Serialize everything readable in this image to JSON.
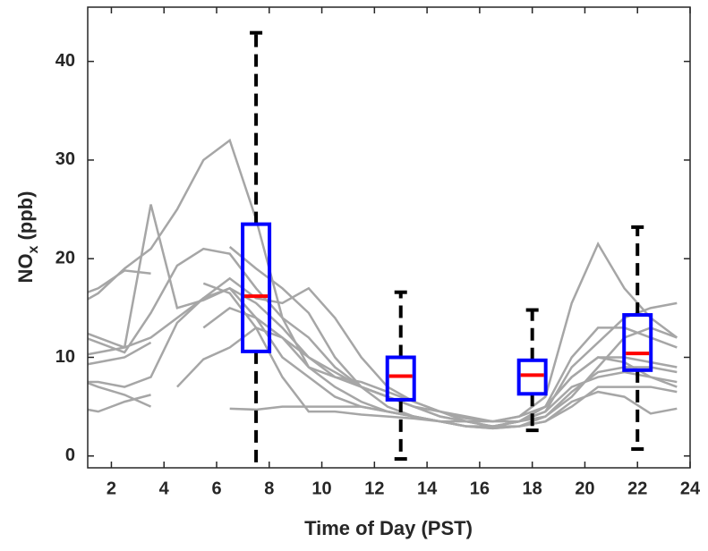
{
  "chart_data": {
    "type": "box",
    "xlabel": "Time of Day (PST)",
    "ylabel": {
      "main": "NO",
      "sub": "x",
      "unit": "(ppb)"
    },
    "xlim": [
      1.1,
      24
    ],
    "ylim": [
      -1.2,
      45.5
    ],
    "xticks": [
      2,
      4,
      6,
      8,
      10,
      12,
      14,
      16,
      18,
      20,
      22,
      24
    ],
    "yticks": [
      0,
      10,
      20,
      30,
      40
    ],
    "line_color": "#a6a6a6",
    "box_color": "#0000ff",
    "median_color": "#ff0000",
    "whisker_color": "#000000",
    "x": [
      0.5,
      1.5,
      2.5,
      3.5,
      4.5,
      5.5,
      6.5,
      7.5,
      8.5,
      9.5,
      10.5,
      11.5,
      12.5,
      13.5,
      14.5,
      15.5,
      16.5,
      17.5,
      18.5,
      19.5,
      20.5,
      21.5,
      22.5,
      23.5
    ],
    "lines": [
      [
        15,
        16.5,
        19,
        21,
        25,
        30,
        32,
        24,
        14,
        9,
        7,
        5.5,
        4.5,
        4,
        3.5,
        3.5,
        3.5,
        4,
        6,
        15.5,
        21.5,
        17,
        14,
        12
      ],
      [
        10,
        10.5,
        11,
        25.5,
        15,
        15.8,
        17,
        14,
        10,
        8,
        6,
        5,
        4.5,
        4,
        3.5,
        3,
        3,
        3.5,
        5,
        8,
        10,
        10,
        9.5,
        9
      ],
      [
        16,
        17,
        18.8,
        18.5,
        null,
        null,
        null,
        null,
        null,
        null,
        null,
        null,
        null,
        null,
        null,
        null,
        null,
        null,
        null,
        null,
        null,
        null,
        null,
        null
      ],
      [
        12.5,
        11.5,
        10.5,
        14.5,
        19.3,
        21,
        20.5,
        17,
        14,
        12,
        9,
        7,
        6,
        5,
        4,
        3.5,
        3,
        3.5,
        5,
        10,
        13,
        13,
        12,
        11
      ],
      [
        9,
        9.5,
        10,
        11.5,
        null,
        null,
        21.2,
        19,
        17,
        14.5,
        10,
        7,
        5,
        4,
        3.5,
        3,
        3,
        3.5,
        4.5,
        9,
        11.5,
        14,
        15,
        15.5
      ],
      [
        7.5,
        7.5,
        7,
        8,
        13.5,
        16,
        17,
        15.5,
        13,
        10,
        8,
        7,
        6,
        5,
        4,
        3.5,
        3,
        3,
        4,
        6,
        9,
        12,
        13,
        12
      ],
      [
        null,
        null,
        null,
        null,
        7,
        9.8,
        11,
        13,
        12,
        10,
        8.5,
        7,
        6,
        5,
        4.5,
        4,
        3.5,
        3.5,
        4,
        6.5,
        8.5,
        9,
        9,
        8.5
      ],
      [
        5,
        4.5,
        5.5,
        6.2,
        null,
        null,
        4.8,
        4.7,
        5,
        5,
        5,
        5,
        4.5,
        4,
        3.5,
        3,
        2.8,
        3,
        3.5,
        5,
        7,
        7,
        7,
        6.5
      ],
      [
        null,
        null,
        null,
        null,
        null,
        13,
        15,
        14,
        12,
        9,
        8,
        7.5,
        6.5,
        5.5,
        4.5,
        3.5,
        3,
        3.5,
        4.5,
        7,
        8,
        8.5,
        8,
        7.5
      ],
      [
        8,
        7,
        6.2,
        5,
        null,
        17.5,
        16.5,
        13,
        8,
        4.5,
        4.5,
        4.2,
        4,
        3.8,
        3.5,
        3,
        2.8,
        3,
        3.5,
        5.5,
        6.5,
        6,
        4.3,
        4.8
      ],
      [
        13,
        12,
        11,
        12,
        14,
        16,
        18,
        16,
        15.5,
        17,
        14,
        10,
        7,
        5.5,
        4.5,
        3.8,
        3.5,
        4,
        5,
        8,
        10,
        9.5,
        8,
        7
      ]
    ],
    "boxes": [
      {
        "x": 7.5,
        "whisker_low": -3,
        "q1": 10.6,
        "median": 16.2,
        "q3": 23.5,
        "whisker_high": 42.9
      },
      {
        "x": 13,
        "whisker_low": -0.3,
        "q1": 5.7,
        "median": 8.1,
        "q3": 10,
        "whisker_high": 16.6
      },
      {
        "x": 18,
        "whisker_low": 2.6,
        "q1": 6.3,
        "median": 8.2,
        "q3": 9.7,
        "whisker_high": 14.8
      },
      {
        "x": 22,
        "whisker_low": 0.7,
        "q1": 8.7,
        "median": 10.4,
        "q3": 14.3,
        "whisker_high": 23.2
      }
    ]
  }
}
